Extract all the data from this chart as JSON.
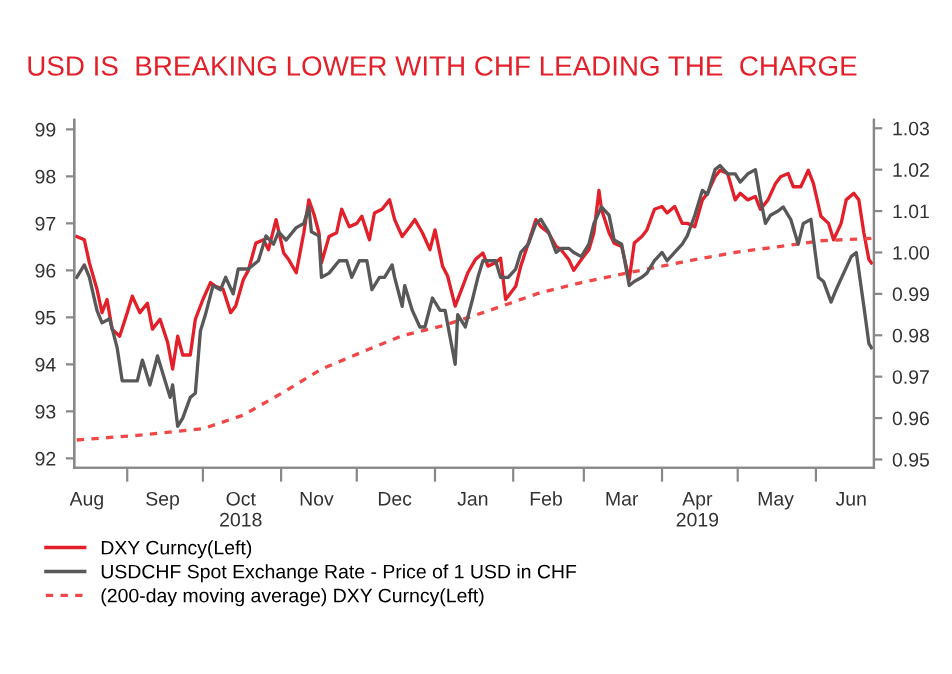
{
  "chart_data": {
    "type": "line",
    "title": "USD IS  BREAKING LOWER WITH CHF LEADING THE  CHARGE",
    "legend": "bottom",
    "grid": false,
    "marker": "none",
    "xlim": [
      "2018-08-11",
      "2019-06-24"
    ],
    "xticks": [
      {
        "value": "2018-08-16",
        "label": "Aug"
      },
      {
        "value": "2018-09-01",
        "label": null
      },
      {
        "value": "2018-09-15",
        "label": "Sep"
      },
      {
        "value": "2018-10-01",
        "label": null
      },
      {
        "value": "2018-10-16",
        "label": "Oct\n2018"
      },
      {
        "value": "2018-11-01",
        "label": null
      },
      {
        "value": "2018-11-15",
        "label": "Nov"
      },
      {
        "value": "2018-12-01",
        "label": null
      },
      {
        "value": "2018-12-16",
        "label": "Dec"
      },
      {
        "value": "2019-01-01",
        "label": null
      },
      {
        "value": "2019-01-16",
        "label": "Jan"
      },
      {
        "value": "2019-02-01",
        "label": null
      },
      {
        "value": "2019-02-14",
        "label": "Feb"
      },
      {
        "value": "2019-03-01",
        "label": null
      },
      {
        "value": "2019-03-16",
        "label": "Mar"
      },
      {
        "value": "2019-04-01",
        "label": null
      },
      {
        "value": "2019-04-15",
        "label": "Apr\n2019"
      },
      {
        "value": "2019-05-01",
        "label": null
      },
      {
        "value": "2019-05-16",
        "label": "May"
      },
      {
        "value": "2019-06-01",
        "label": null
      },
      {
        "value": "2019-06-15",
        "label": "Jun"
      }
    ],
    "ylim": [
      91.8,
      99.2
    ],
    "yticks": [
      92,
      93,
      94,
      95,
      96,
      97,
      98,
      99
    ],
    "y2lim": [
      0.948,
      1.032
    ],
    "y2ticks": [
      {
        "value": 0.95,
        "label": "0.95"
      },
      {
        "value": 0.96,
        "label": "0.96"
      },
      {
        "value": 0.97,
        "label": "0.97"
      },
      {
        "value": 0.98,
        "label": "0.98"
      },
      {
        "value": 0.99,
        "label": "0.99"
      },
      {
        "value": 1.0,
        "label": "1.00"
      },
      {
        "value": 1.01,
        "label": "1.01"
      },
      {
        "value": 1.02,
        "label": "1.02"
      },
      {
        "value": 1.03,
        "label": "1.03"
      }
    ],
    "series": [
      {
        "name": "DXY Curncy(Left)",
        "color": "#e3202a",
        "line_style": "solid",
        "x": [
          "2018-08-12",
          "2018-08-15",
          "2018-08-17",
          "2018-08-20",
          "2018-08-22",
          "2018-08-24",
          "2018-08-26",
          "2018-08-29",
          "2018-09-01",
          "2018-09-03",
          "2018-09-06",
          "2018-09-09",
          "2018-09-11",
          "2018-09-14",
          "2018-09-17",
          "2018-09-19",
          "2018-09-21",
          "2018-09-23",
          "2018-09-26",
          "2018-09-28",
          "2018-10-01",
          "2018-10-04",
          "2018-10-06",
          "2018-10-09",
          "2018-10-12",
          "2018-10-14",
          "2018-10-17",
          "2018-10-19",
          "2018-10-22",
          "2018-10-25",
          "2018-10-27",
          "2018-10-30",
          "2018-11-02",
          "2018-11-04",
          "2018-11-07",
          "2018-11-10",
          "2018-11-12",
          "2018-11-14",
          "2018-11-16",
          "2018-11-17",
          "2018-11-20",
          "2018-11-23",
          "2018-11-25",
          "2018-11-28",
          "2018-12-01",
          "2018-12-03",
          "2018-12-06",
          "2018-12-08",
          "2018-12-11",
          "2018-12-14",
          "2018-12-16",
          "2018-12-19",
          "2018-12-22",
          "2018-12-24",
          "2018-12-27",
          "2018-12-30",
          "2019-01-01",
          "2019-01-04",
          "2019-01-06",
          "2019-01-09",
          "2019-01-12",
          "2019-01-14",
          "2019-01-17",
          "2019-01-20",
          "2019-01-22",
          "2019-01-25",
          "2019-01-27",
          "2019-01-29",
          "2019-02-02",
          "2019-02-04",
          "2019-02-07",
          "2019-02-10",
          "2019-02-12",
          "2019-02-15",
          "2019-02-18",
          "2019-02-20",
          "2019-02-23",
          "2019-02-25",
          "2019-02-28",
          "2019-03-03",
          "2019-03-05",
          "2019-03-07",
          "2019-03-08",
          "2019-03-11",
          "2019-03-13",
          "2019-03-16",
          "2019-03-19",
          "2019-03-21",
          "2019-03-24",
          "2019-03-26",
          "2019-03-29",
          "2019-04-01",
          "2019-04-03",
          "2019-04-06",
          "2019-04-09",
          "2019-04-11",
          "2019-04-14",
          "2019-04-17",
          "2019-04-19",
          "2019-04-22",
          "2019-04-24",
          "2019-04-27",
          "2019-04-30",
          "2019-05-02",
          "2019-05-05",
          "2019-05-08",
          "2019-05-10",
          "2019-05-13",
          "2019-05-16",
          "2019-05-18",
          "2019-05-21",
          "2019-05-23",
          "2019-05-26",
          "2019-05-29",
          "2019-05-31",
          "2019-06-03",
          "2019-06-06",
          "2019-06-08",
          "2019-06-11",
          "2019-06-13",
          "2019-06-16",
          "2019-06-18",
          "2019-06-20",
          "2019-06-22",
          "2019-06-23"
        ],
        "values": [
          96.72,
          96.65,
          96.16,
          95.6,
          95.1,
          95.38,
          94.75,
          94.6,
          95.1,
          95.45,
          95.1,
          95.3,
          94.75,
          94.96,
          94.47,
          93.9,
          94.6,
          94.2,
          94.2,
          94.96,
          95.38,
          95.74,
          95.66,
          95.6,
          95.1,
          95.24,
          95.8,
          96.0,
          96.58,
          96.65,
          96.44,
          97.08,
          96.37,
          96.23,
          95.95,
          96.8,
          97.5,
          97.2,
          96.8,
          96.16,
          96.72,
          96.8,
          97.3,
          96.93,
          97.0,
          97.15,
          96.65,
          97.22,
          97.3,
          97.5,
          97.08,
          96.72,
          96.93,
          97.08,
          96.8,
          96.44,
          96.86,
          96.09,
          95.88,
          95.24,
          95.66,
          95.95,
          96.23,
          96.37,
          96.09,
          96.16,
          96.26,
          95.38,
          95.66,
          96.09,
          96.58,
          97.08,
          96.93,
          96.8,
          96.51,
          96.44,
          96.23,
          96.0,
          96.23,
          96.44,
          96.8,
          97.7,
          97.3,
          96.8,
          96.58,
          96.51,
          95.8,
          96.58,
          96.72,
          96.86,
          97.3,
          97.36,
          97.22,
          97.36,
          97.0,
          97.0,
          96.93,
          97.5,
          97.64,
          97.99,
          98.13,
          98.06,
          97.5,
          97.64,
          97.5,
          97.57,
          97.3,
          97.5,
          97.85,
          97.99,
          98.06,
          97.78,
          97.78,
          98.13,
          97.85,
          97.15,
          97.0,
          96.65,
          97.0,
          97.5,
          97.64,
          97.5,
          96.8,
          96.23,
          96.16
        ]
      },
      {
        "name": "USDCHF Spot Exchange Rate - Price of 1 USD in CHF",
        "color": "#585858",
        "axis": "y2",
        "line_style": "solid",
        "x": [
          "2018-08-12",
          "2018-08-15",
          "2018-08-17",
          "2018-08-20",
          "2018-08-22",
          "2018-08-25",
          "2018-08-28",
          "2018-08-30",
          "2018-09-02",
          "2018-09-05",
          "2018-09-07",
          "2018-09-10",
          "2018-09-13",
          "2018-09-15",
          "2018-09-18",
          "2018-09-19",
          "2018-09-21",
          "2018-09-23",
          "2018-09-26",
          "2018-09-28",
          "2018-09-30",
          "2018-10-02",
          "2018-10-05",
          "2018-10-08",
          "2018-10-10",
          "2018-10-13",
          "2018-10-15",
          "2018-10-19",
          "2018-10-23",
          "2018-10-26",
          "2018-10-29",
          "2018-10-31",
          "2018-11-03",
          "2018-11-07",
          "2018-11-10",
          "2018-11-12",
          "2018-11-13",
          "2018-11-16",
          "2018-11-17",
          "2018-11-20",
          "2018-11-24",
          "2018-11-27",
          "2018-11-29",
          "2018-12-02",
          "2018-12-05",
          "2018-12-07",
          "2018-12-10",
          "2018-12-12",
          "2018-12-15",
          "2018-12-16",
          "2018-12-19",
          "2018-12-20",
          "2018-12-23",
          "2018-12-26",
          "2018-12-28",
          "2018-12-31",
          "2019-01-03",
          "2019-01-05",
          "2019-01-09",
          "2019-01-10",
          "2019-01-13",
          "2019-01-16",
          "2019-01-18",
          "2019-01-20",
          "2019-01-22",
          "2019-01-25",
          "2019-01-27",
          "2019-01-30",
          "2019-02-02",
          "2019-02-04",
          "2019-02-07",
          "2019-02-10",
          "2019-02-12",
          "2019-02-15",
          "2019-02-18",
          "2019-02-20",
          "2019-02-23",
          "2019-02-25",
          "2019-02-28",
          "2019-03-03",
          "2019-03-05",
          "2019-03-08",
          "2019-03-11",
          "2019-03-13",
          "2019-03-16",
          "2019-03-19",
          "2019-03-21",
          "2019-03-24",
          "2019-03-26",
          "2019-03-29",
          "2019-04-01",
          "2019-04-03",
          "2019-04-06",
          "2019-04-09",
          "2019-04-11",
          "2019-04-14",
          "2019-04-17",
          "2019-04-19",
          "2019-04-22",
          "2019-04-24",
          "2019-04-27",
          "2019-04-30",
          "2019-05-02",
          "2019-05-05",
          "2019-05-08",
          "2019-05-10",
          "2019-05-12",
          "2019-05-14",
          "2019-05-17",
          "2019-05-19",
          "2019-05-22",
          "2019-05-25",
          "2019-05-27",
          "2019-05-30",
          "2019-06-02",
          "2019-06-04",
          "2019-06-07",
          "2019-06-09",
          "2019-06-12",
          "2019-06-15",
          "2019-06-17",
          "2019-06-20",
          "2019-06-22",
          "2019-06-23"
        ],
        "values": [
          0.994,
          0.997,
          0.994,
          0.986,
          0.983,
          0.984,
          0.977,
          0.969,
          0.969,
          0.969,
          0.974,
          0.968,
          0.975,
          0.971,
          0.965,
          0.968,
          0.958,
          0.96,
          0.965,
          0.966,
          0.981,
          0.985,
          0.992,
          0.991,
          0.994,
          0.99,
          0.996,
          0.996,
          0.998,
          1.004,
          1.002,
          1.005,
          1.003,
          1.006,
          1.007,
          1.011,
          1.005,
          1.004,
          0.994,
          0.995,
          0.998,
          0.998,
          0.994,
          0.998,
          0.998,
          0.991,
          0.994,
          0.994,
          0.997,
          0.994,
          0.987,
          0.992,
          0.986,
          0.982,
          0.982,
          0.989,
          0.986,
          0.986,
          0.973,
          0.985,
          0.982,
          0.989,
          0.994,
          0.998,
          0.998,
          0.998,
          0.994,
          0.994,
          0.996,
          1.0,
          1.002,
          1.007,
          1.008,
          1.005,
          1.0,
          1.001,
          1.001,
          1.0,
          0.999,
          1.002,
          1.007,
          1.011,
          1.009,
          1.003,
          1.002,
          0.992,
          0.993,
          0.994,
          0.995,
          0.998,
          1.0,
          0.998,
          1.0,
          1.002,
          1.004,
          1.009,
          1.015,
          1.014,
          1.02,
          1.021,
          1.019,
          1.019,
          1.017,
          1.019,
          1.02,
          1.013,
          1.007,
          1.009,
          1.01,
          1.011,
          1.008,
          1.002,
          1.007,
          1.008,
          0.994,
          0.993,
          0.988,
          0.991,
          0.995,
          0.999,
          1.0,
          0.987,
          0.978,
          0.977
        ]
      },
      {
        "name": "(200-day moving average) DXY Curncy(Left)",
        "color": "#f04848",
        "line_style": "dashed",
        "x": [
          "2018-08-12",
          "2018-09-05",
          "2018-10-01",
          "2018-10-17",
          "2018-11-02",
          "2018-11-17",
          "2018-12-03",
          "2018-12-19",
          "2019-01-04",
          "2019-01-20",
          "2019-02-12",
          "2019-02-28",
          "2019-03-16",
          "2019-04-01",
          "2019-04-17",
          "2019-05-02",
          "2019-05-18",
          "2019-06-03",
          "2019-06-23"
        ],
        "values": [
          92.39,
          92.49,
          92.63,
          92.92,
          93.41,
          93.9,
          94.26,
          94.61,
          94.82,
          95.1,
          95.53,
          95.74,
          95.92,
          96.09,
          96.26,
          96.4,
          96.51,
          96.63,
          96.68
        ]
      }
    ]
  }
}
